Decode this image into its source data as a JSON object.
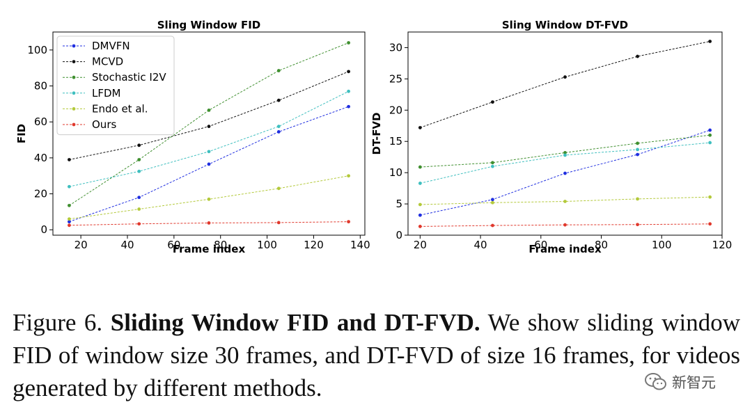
{
  "chart_data": [
    {
      "type": "line",
      "title": "Sling Window FID",
      "xlabel": "Frame index",
      "ylabel": "FID",
      "xlim": [
        8,
        142
      ],
      "ylim": [
        -3,
        110
      ],
      "xticks": [
        20,
        40,
        60,
        80,
        100,
        120,
        140
      ],
      "yticks": [
        0,
        20,
        40,
        60,
        80,
        100
      ],
      "grid": false,
      "legend": "top-left",
      "series": [
        {
          "name": "DMVFN",
          "color": "#1f2ee0",
          "x": [
            15,
            45,
            75,
            105,
            135
          ],
          "values": [
            4.5,
            18,
            36.5,
            54.5,
            68.5
          ]
        },
        {
          "name": "MCVD",
          "color": "#111111",
          "x": [
            15,
            45,
            75,
            105,
            135
          ],
          "values": [
            39,
            47,
            57.5,
            72,
            88
          ]
        },
        {
          "name": "Stochastic I2V",
          "color": "#3f8f2f",
          "x": [
            15,
            45,
            75,
            105,
            135
          ],
          "values": [
            13.5,
            39,
            66.5,
            88.5,
            104
          ]
        },
        {
          "name": "LFDM",
          "color": "#3fbfbf",
          "x": [
            15,
            45,
            75,
            105,
            135
          ],
          "values": [
            24,
            32.5,
            43.5,
            57.5,
            77
          ]
        },
        {
          "name": "Endo et al.",
          "color": "#b3c93a",
          "x": [
            15,
            45,
            75,
            105,
            135
          ],
          "values": [
            6,
            11.5,
            17,
            23,
            30
          ]
        },
        {
          "name": "Ours",
          "color": "#e0382c",
          "x": [
            15,
            45,
            75,
            105,
            135
          ],
          "values": [
            2.5,
            3.3,
            3.8,
            4.0,
            4.5
          ]
        }
      ]
    },
    {
      "type": "line",
      "title": "Sling Window DT-FVD",
      "xlabel": "Frame index",
      "ylabel": "DT-FVD",
      "xlim": [
        16,
        120
      ],
      "ylim": [
        0,
        32.5
      ],
      "xticks": [
        20,
        40,
        60,
        80,
        100,
        120
      ],
      "yticks": [
        0,
        5,
        10,
        15,
        20,
        25,
        30
      ],
      "grid": false,
      "legend": "none",
      "series": [
        {
          "name": "DMVFN",
          "color": "#1f2ee0",
          "x": [
            20,
            44,
            68,
            92,
            116
          ],
          "values": [
            3.2,
            5.7,
            9.9,
            12.9,
            16.8
          ]
        },
        {
          "name": "MCVD",
          "color": "#111111",
          "x": [
            20,
            44,
            68,
            92,
            116
          ],
          "values": [
            17.2,
            21.3,
            25.3,
            28.6,
            31.0
          ]
        },
        {
          "name": "Stochastic I2V",
          "color": "#3f8f2f",
          "x": [
            20,
            44,
            68,
            92,
            116
          ],
          "values": [
            10.9,
            11.6,
            13.2,
            14.7,
            16.0
          ]
        },
        {
          "name": "LFDM",
          "color": "#3fbfbf",
          "x": [
            20,
            44,
            68,
            92,
            116
          ],
          "values": [
            8.3,
            11.0,
            12.8,
            13.7,
            14.8
          ]
        },
        {
          "name": "Endo et al.",
          "color": "#b3c93a",
          "x": [
            20,
            44,
            68,
            92,
            116
          ],
          "values": [
            4.9,
            5.2,
            5.4,
            5.8,
            6.1
          ]
        },
        {
          "name": "Ours",
          "color": "#e0382c",
          "x": [
            20,
            44,
            68,
            92,
            116
          ],
          "values": [
            1.4,
            1.55,
            1.65,
            1.7,
            1.8
          ]
        }
      ]
    }
  ],
  "caption": {
    "label": "Figure 6.",
    "bold": "Sliding Window FID and DT-FVD.",
    "text": "We show sliding window FID of window size 30 frames, and DT-FVD of size 16 frames, for videos generated by different methods."
  },
  "watermark": {
    "text": "新智元"
  }
}
